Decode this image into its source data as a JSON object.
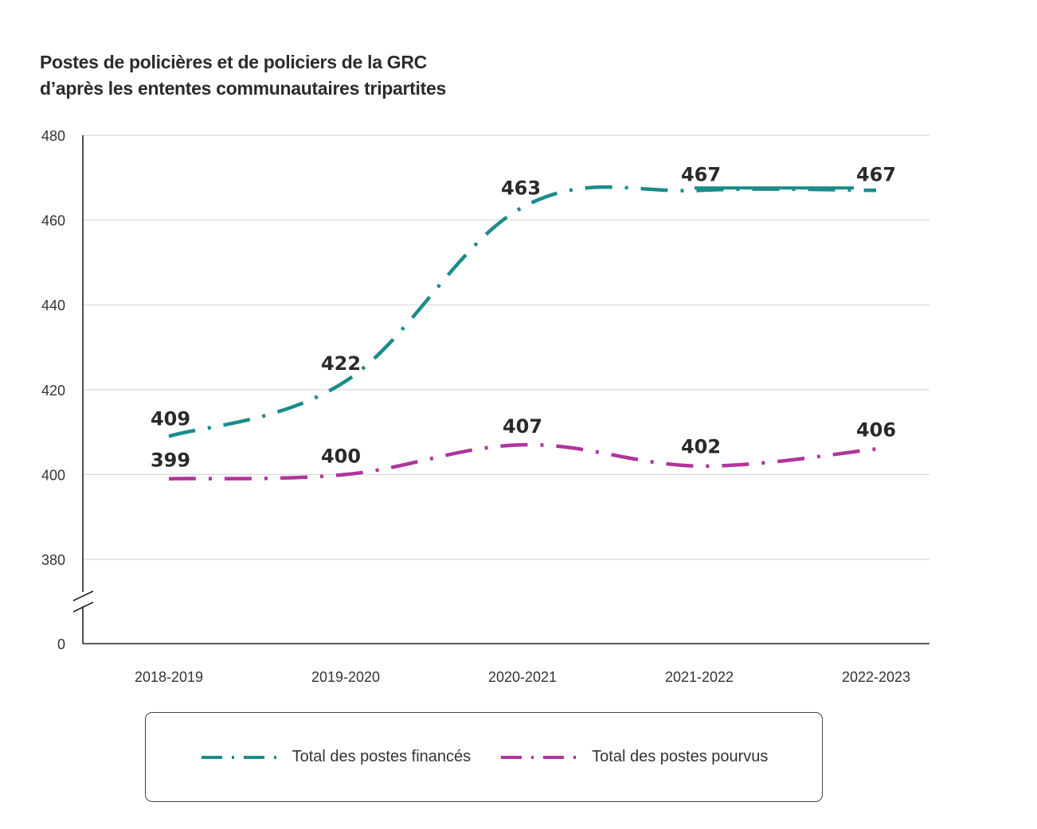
{
  "chart_data": {
    "type": "line",
    "title": "Postes de policières et de policiers de la GRC",
    "title_line2": "d’après les ententes communautaires tripartites",
    "categories": [
      "2018-2019",
      "2019-2020",
      "2020-2021",
      "2021-2022",
      "2022-2023"
    ],
    "yticks": [
      "480",
      "460",
      "440",
      "420",
      "400",
      "380",
      "0"
    ],
    "ylim": [
      0,
      480
    ],
    "axis_break": true,
    "grid": true,
    "series": [
      {
        "name": "Total des postes financés",
        "color": "#1a8c8a",
        "values": [
          409,
          422,
          463,
          467,
          467
        ],
        "labels": [
          "409",
          "422",
          "463",
          "467",
          "467"
        ]
      },
      {
        "name": "Total des postes pourvus",
        "color": "#b0359c",
        "values": [
          399,
          400,
          407,
          402,
          406
        ],
        "labels": [
          "399",
          "400",
          "407",
          "402",
          "406"
        ]
      }
    ],
    "legend_position": "bottom"
  }
}
